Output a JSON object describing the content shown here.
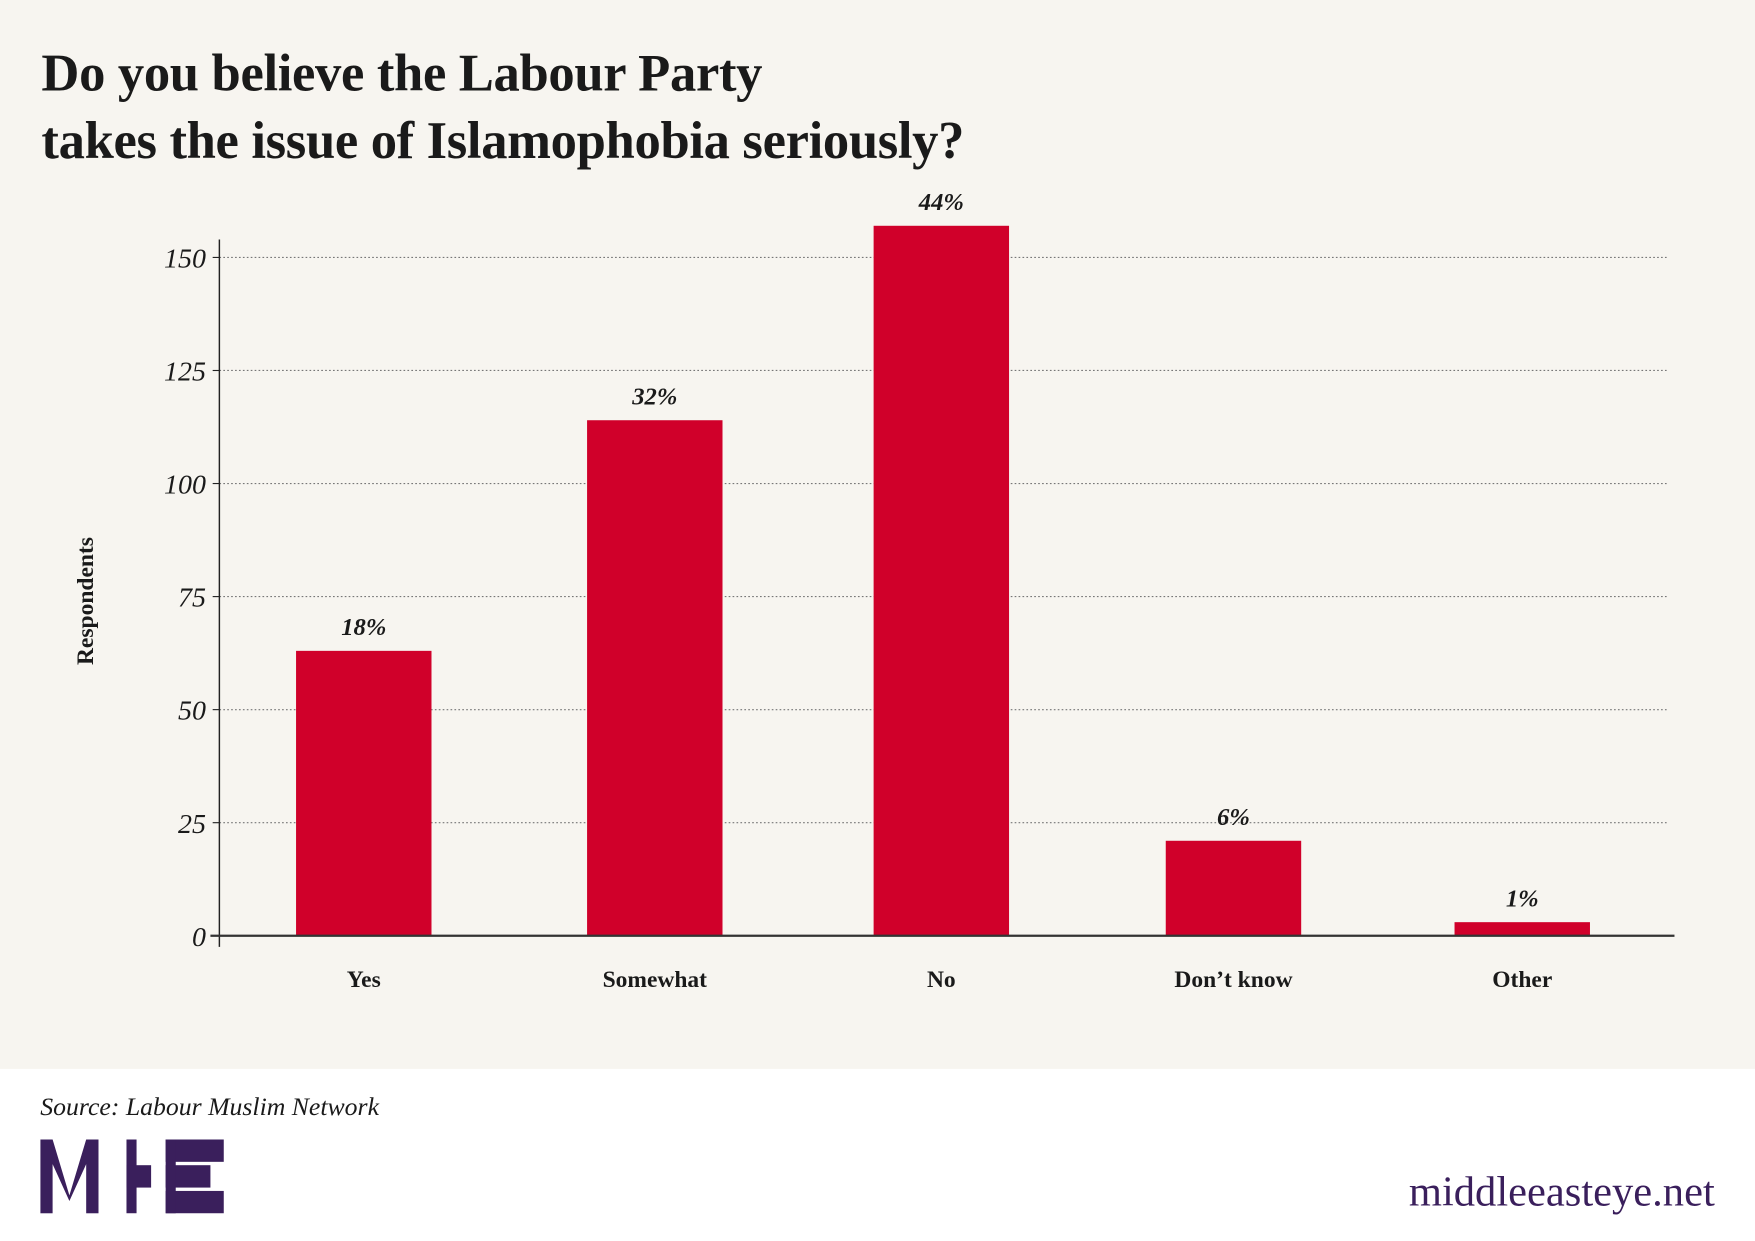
{
  "title_lines": [
    "Do you believe the Labour Party",
    "takes the issue of Islamophobia seriously?"
  ],
  "source": "Source: Labour Muslim Network",
  "brand": {
    "logo_text": "MEE",
    "site": "middleeasteye.net",
    "color": "#3a1f5c"
  },
  "chart_data": {
    "type": "bar",
    "title": "Do you believe the Labour Party takes the issue of Islamophobia seriously?",
    "categories": [
      "Yes",
      "Somewhat",
      "No",
      "Don’t know",
      "Other"
    ],
    "values": [
      63,
      114,
      157,
      21,
      3
    ],
    "data_labels": [
      "18%",
      "32%",
      "44%",
      "6%",
      "1%"
    ],
    "xlabel": "",
    "ylabel": "Respondents",
    "ylim": [
      0,
      150
    ],
    "yticks": [
      0,
      25,
      50,
      75,
      100,
      125,
      150
    ],
    "grid": true,
    "bar_color": "#d0002a",
    "background": "#f7f5f0"
  }
}
